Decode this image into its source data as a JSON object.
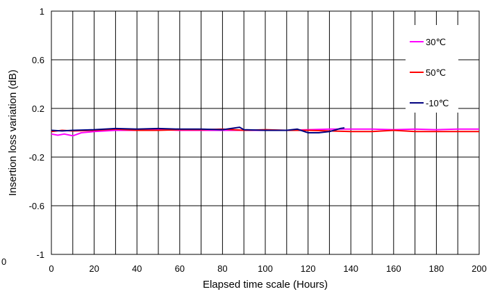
{
  "chart_data": {
    "type": "line",
    "title": "",
    "xlabel": "Elapsed time scale (Hours)",
    "ylabel": "Insertion loss variation (dB)",
    "xlim": [
      0,
      200
    ],
    "ylim": [
      -1,
      1
    ],
    "x_ticks": [
      0,
      20,
      40,
      60,
      80,
      100,
      120,
      140,
      160,
      180,
      200
    ],
    "y_ticks": [
      -1,
      -0.6,
      -0.2,
      0.2,
      0.6,
      1
    ],
    "x_tick_labels": [
      "0",
      "20",
      "40",
      "60",
      "80",
      "100",
      "120",
      "140",
      "160",
      "180",
      "200"
    ],
    "y_tick_labels": [
      "-1",
      "-0.6",
      "-0.2",
      "0.2",
      "0.6",
      "1"
    ],
    "vertical_grid_step": 10,
    "grid": true,
    "stray_label": "0",
    "legend_position": "top-right",
    "series": [
      {
        "name": "30℃",
        "color": "#ff00ff",
        "x": [
          0,
          3,
          6,
          10,
          14,
          20,
          30,
          40,
          50,
          60,
          70,
          80,
          90,
          100,
          110,
          120,
          130,
          140,
          150,
          160,
          170,
          180,
          190,
          200
        ],
        "y": [
          -0.01,
          -0.02,
          -0.01,
          -0.025,
          0.0,
          0.01,
          0.02,
          0.02,
          0.025,
          0.02,
          0.02,
          0.02,
          0.02,
          0.02,
          0.02,
          0.025,
          0.03,
          0.03,
          0.03,
          0.025,
          0.03,
          0.025,
          0.03,
          0.03
        ]
      },
      {
        "name": "50℃",
        "color": "#ff0000",
        "x": [
          0,
          5,
          10,
          20,
          30,
          40,
          50,
          60,
          70,
          80,
          90,
          100,
          110,
          120,
          130,
          140,
          150,
          160,
          170,
          180,
          190,
          200
        ],
        "y": [
          0.01,
          0.02,
          0.015,
          0.02,
          0.03,
          0.02,
          0.02,
          0.025,
          0.025,
          0.03,
          0.02,
          0.025,
          0.02,
          0.02,
          0.015,
          0.01,
          0.01,
          0.02,
          0.01,
          0.01,
          0.01,
          0.01
        ]
      },
      {
        "name": "-10℃",
        "color": "#000080",
        "x": [
          0,
          5,
          10,
          20,
          30,
          40,
          50,
          60,
          70,
          80,
          88,
          90,
          100,
          110,
          115,
          120,
          125,
          130,
          135,
          137
        ],
        "y": [
          0.02,
          0.015,
          0.02,
          0.025,
          0.035,
          0.03,
          0.035,
          0.03,
          0.03,
          0.025,
          0.045,
          0.025,
          0.02,
          0.02,
          0.03,
          0.0,
          0.0,
          0.01,
          0.035,
          0.04
        ]
      }
    ]
  }
}
